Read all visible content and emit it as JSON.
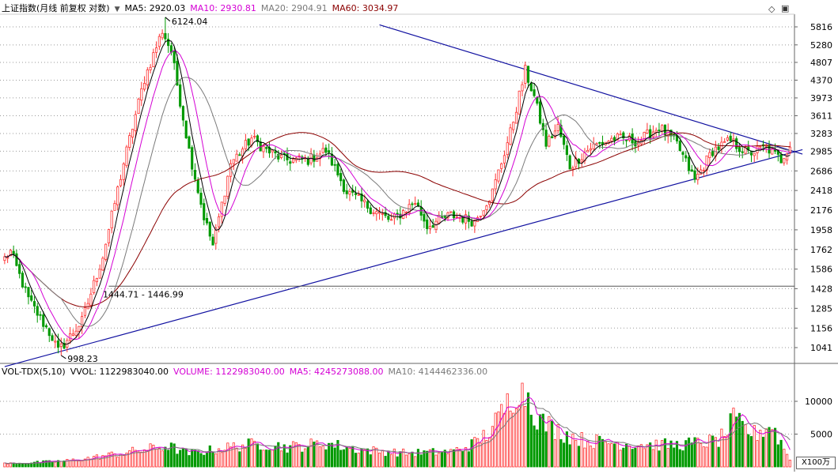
{
  "header": {
    "title": "上证指数(月线 前复权 对数)",
    "ma5": "MA5: 2920.03",
    "ma10": "MA10: 2930.81",
    "ma20": "MA20: 2904.91",
    "ma60": "MA60: 3034.97"
  },
  "volume_header": {
    "title": "VOL-TDX(5,10)",
    "vvol": "VVOL: 1122983040.00",
    "volume": "VOLUME: 1122983040.00",
    "ma5": "MA5: 4245273088.00",
    "ma10": "MA10: 4144462336.00"
  },
  "unit_label": "X100万",
  "annotations": {
    "high": "6124.04",
    "low": "998.23",
    "range": "1444.71 - 1446.99"
  },
  "colors": {
    "up": "#ff3232",
    "down": "#009900",
    "ma5": "#000000",
    "ma10": "#d400d4",
    "ma20": "#7a7a7a",
    "ma60": "#8b0000",
    "trendline": "#1010a0"
  },
  "chart_data": [
    {
      "type": "candlestick",
      "title": "上证指数(月线 前复权 对数)",
      "scale": "log",
      "y_ticks": [
        5816,
        5280,
        4807,
        4370,
        3973,
        3611,
        3283,
        2985,
        2686,
        2418,
        2176,
        1958,
        1762,
        1586,
        1428,
        1285,
        1156,
        1041
      ],
      "grid": true,
      "anchors": [
        {
          "i": 0,
          "close": 1680
        },
        {
          "i": 2,
          "close": 1740
        },
        {
          "i": 8,
          "close": 1350
        },
        {
          "i": 16,
          "close": 1100
        },
        {
          "i": 18,
          "close": 1020
        },
        {
          "i": 26,
          "close": 1200
        },
        {
          "i": 33,
          "close": 1700
        },
        {
          "i": 40,
          "close": 2800
        },
        {
          "i": 47,
          "close": 4400
        },
        {
          "i": 53,
          "close": 5700
        },
        {
          "i": 56,
          "close": 5100
        },
        {
          "i": 62,
          "close": 3000
        },
        {
          "i": 67,
          "close": 2100
        },
        {
          "i": 70,
          "close": 1800
        },
        {
          "i": 76,
          "close": 2800
        },
        {
          "i": 83,
          "close": 3200
        },
        {
          "i": 88,
          "close": 3000
        },
        {
          "i": 94,
          "close": 2850
        },
        {
          "i": 102,
          "close": 2850
        },
        {
          "i": 108,
          "close": 3000
        },
        {
          "i": 115,
          "close": 2400
        },
        {
          "i": 123,
          "close": 2200
        },
        {
          "i": 130,
          "close": 2050
        },
        {
          "i": 138,
          "close": 2280
        },
        {
          "i": 142,
          "close": 2000
        },
        {
          "i": 150,
          "close": 2120
        },
        {
          "i": 158,
          "close": 2050
        },
        {
          "i": 164,
          "close": 2400
        },
        {
          "i": 170,
          "close": 3300
        },
        {
          "i": 175,
          "close": 4600
        },
        {
          "i": 178,
          "close": 4000
        },
        {
          "i": 182,
          "close": 3100
        },
        {
          "i": 186,
          "close": 3400
        },
        {
          "i": 190,
          "close": 2750
        },
        {
          "i": 197,
          "close": 3050
        },
        {
          "i": 205,
          "close": 3200
        },
        {
          "i": 213,
          "close": 3150
        },
        {
          "i": 220,
          "close": 3400
        },
        {
          "i": 226,
          "close": 3100
        },
        {
          "i": 232,
          "close": 2550
        },
        {
          "i": 238,
          "close": 3000
        },
        {
          "i": 244,
          "close": 3150
        },
        {
          "i": 250,
          "close": 2950
        },
        {
          "i": 256,
          "close": 3050
        },
        {
          "i": 261,
          "close": 2850
        },
        {
          "i": 264,
          "close": 3100
        }
      ],
      "extremes": {
        "high": 6124.04,
        "low": 998.23
      },
      "moving_averages": [
        {
          "name": "MA5",
          "value": 2920.03
        },
        {
          "name": "MA10",
          "value": 2930.81
        },
        {
          "name": "MA20",
          "value": 2904.91
        },
        {
          "name": "MA60",
          "value": 3034.97
        }
      ],
      "trendlines": [
        {
          "from": {
            "i": 0,
            "price": 940
          },
          "to": {
            "i": 265,
            "price": 2960
          }
        },
        {
          "from": {
            "i": 126,
            "price": 5880
          },
          "to": {
            "i": 265,
            "price": 2990
          }
        }
      ],
      "horizontal_line": 1446.99
    },
    {
      "type": "bar",
      "title": "VOL-TDX(5,10)",
      "y_ticks": [
        10000,
        5000
      ],
      "unit": "X100万",
      "grid": true,
      "anchors": [
        {
          "i": 0,
          "v": 500
        },
        {
          "i": 20,
          "v": 900
        },
        {
          "i": 35,
          "v": 1800
        },
        {
          "i": 45,
          "v": 2500
        },
        {
          "i": 55,
          "v": 3200
        },
        {
          "i": 62,
          "v": 2000
        },
        {
          "i": 70,
          "v": 2600
        },
        {
          "i": 80,
          "v": 3300
        },
        {
          "i": 88,
          "v": 3500
        },
        {
          "i": 95,
          "v": 3000
        },
        {
          "i": 108,
          "v": 3600
        },
        {
          "i": 120,
          "v": 2600
        },
        {
          "i": 135,
          "v": 2100
        },
        {
          "i": 150,
          "v": 2300
        },
        {
          "i": 158,
          "v": 3600
        },
        {
          "i": 164,
          "v": 6000
        },
        {
          "i": 170,
          "v": 10500
        },
        {
          "i": 173,
          "v": 13000
        },
        {
          "i": 176,
          "v": 11000
        },
        {
          "i": 180,
          "v": 7000
        },
        {
          "i": 186,
          "v": 5500
        },
        {
          "i": 195,
          "v": 4000
        },
        {
          "i": 210,
          "v": 3500
        },
        {
          "i": 225,
          "v": 3300
        },
        {
          "i": 240,
          "v": 4000
        },
        {
          "i": 245,
          "v": 7000
        },
        {
          "i": 252,
          "v": 5000
        },
        {
          "i": 258,
          "v": 6500
        },
        {
          "i": 262,
          "v": 3000
        },
        {
          "i": 264,
          "v": 1100
        }
      ],
      "ma5": 4245273088.0,
      "ma10": 4144462336.0,
      "vvol": 1122983040.0
    }
  ]
}
